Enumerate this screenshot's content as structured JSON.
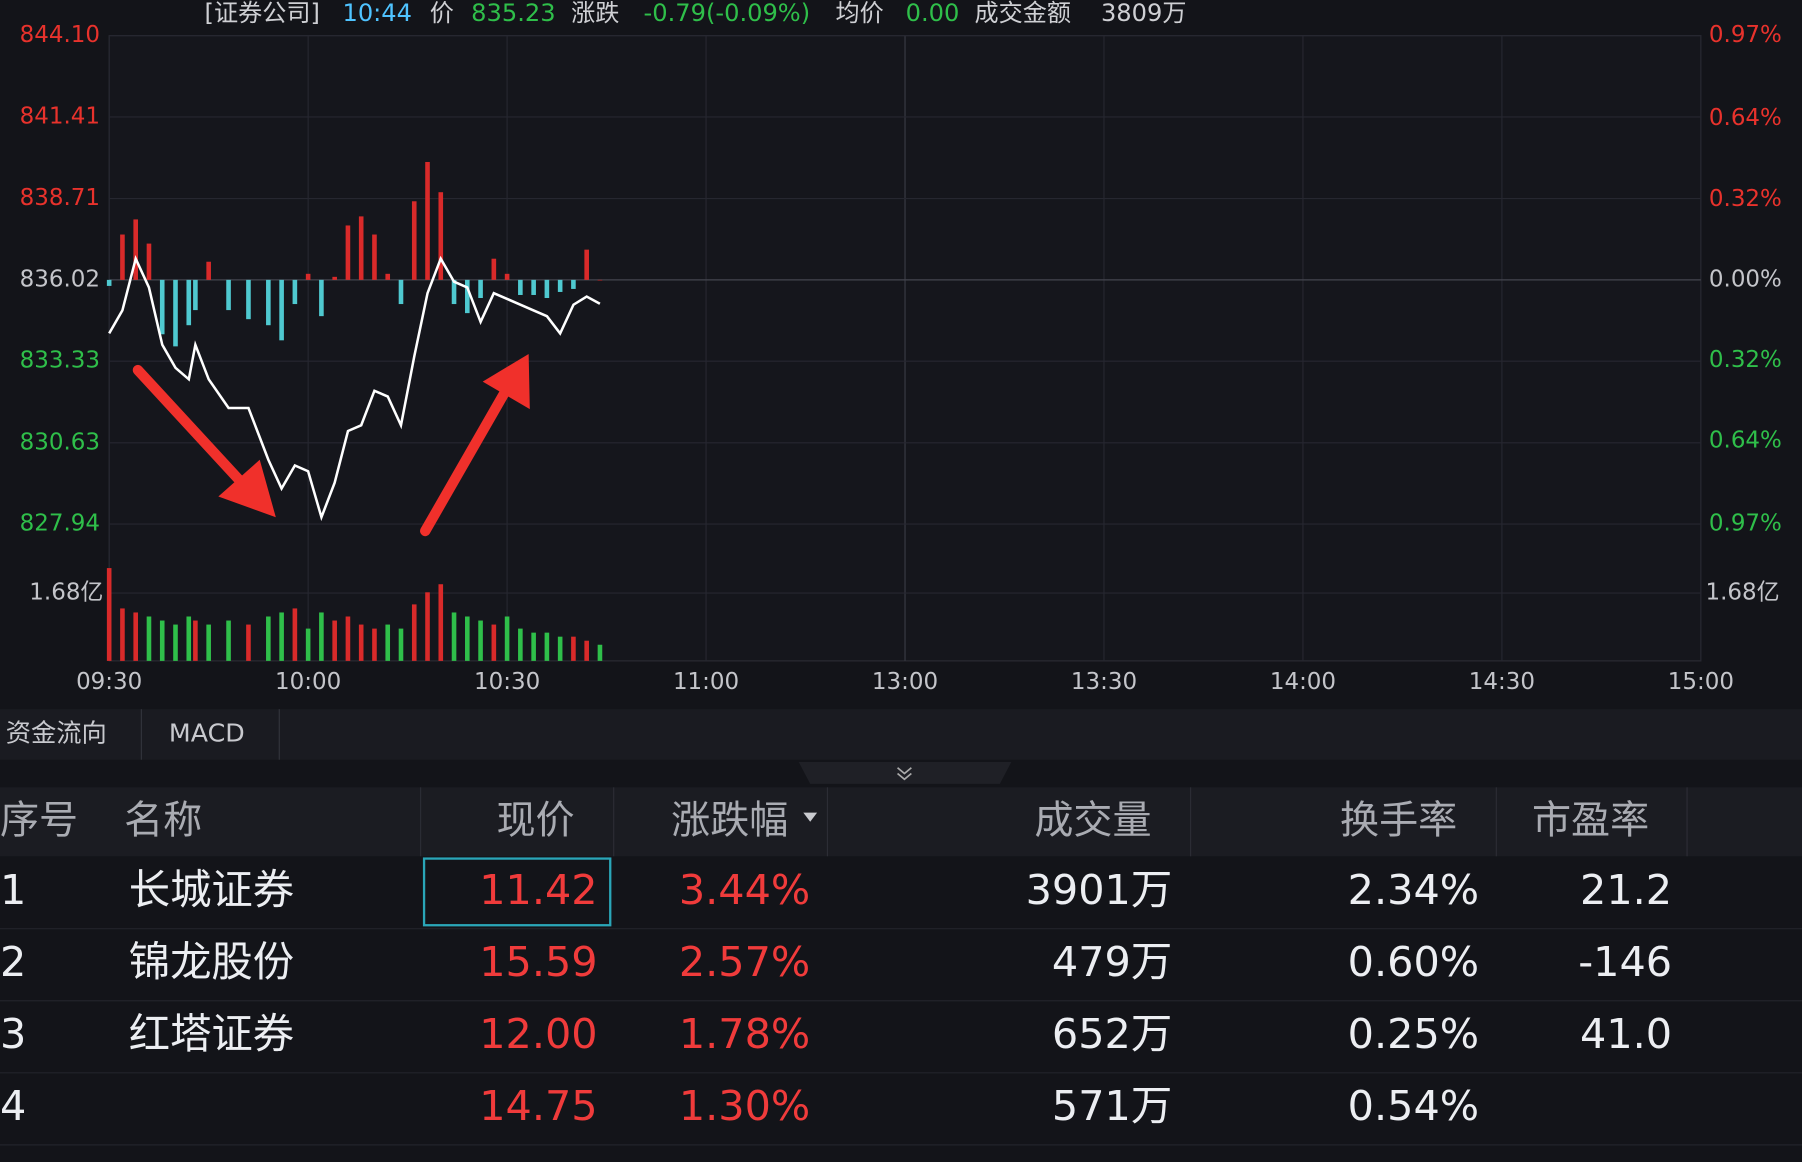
{
  "header": {
    "sector": "[证券公司]",
    "time": "10:44",
    "price_label": "价",
    "price": "835.23",
    "change_label": "涨跌",
    "change": "-0.79(-0.09%)",
    "avg_label": "均价",
    "avg": "0.00",
    "amount_label": "成交金额",
    "amount": "3809万"
  },
  "chart_data": {
    "type": "line",
    "x": [
      0,
      2,
      4,
      6,
      8,
      10,
      12,
      13,
      15,
      18,
      21,
      24,
      26,
      28,
      30,
      32,
      34,
      36,
      38,
      40,
      42,
      44,
      46,
      48,
      50,
      52,
      54,
      56,
      58,
      60,
      62,
      64,
      66,
      68,
      70,
      72,
      74
    ],
    "values": [
      834.25,
      835.01,
      836.72,
      835.77,
      833.87,
      833.11,
      832.73,
      833.87,
      832.73,
      831.78,
      831.78,
      830.07,
      829.12,
      829.88,
      829.69,
      828.17,
      829.31,
      831.02,
      831.21,
      832.35,
      832.16,
      831.21,
      833.49,
      835.58,
      836.72,
      835.96,
      835.77,
      834.63,
      835.58,
      835.39,
      835.2,
      835.01,
      834.82,
      834.25,
      835.2,
      835.47,
      835.23
    ],
    "flow": [
      -0.2,
      1.5,
      2.0,
      1.2,
      -1.8,
      -2.2,
      -1.5,
      -1.0,
      0.6,
      -1.0,
      -1.3,
      -1.5,
      -2.0,
      -0.8,
      0.2,
      -1.2,
      0.1,
      1.8,
      2.1,
      1.5,
      0.2,
      -0.8,
      2.6,
      3.9,
      2.9,
      -0.8,
      -1.1,
      -0.6,
      0.7,
      0.2,
      -0.5,
      -0.5,
      -0.6,
      -0.4,
      -0.3,
      1.0,
      0.0
    ],
    "volume": [
      2.3,
      1.3,
      1.2,
      1.1,
      1.0,
      0.9,
      1.1,
      1.0,
      0.9,
      1.0,
      0.9,
      1.1,
      1.2,
      1.3,
      0.8,
      1.2,
      1.0,
      1.1,
      0.9,
      0.8,
      0.9,
      0.8,
      1.4,
      1.7,
      1.9,
      1.2,
      1.1,
      1.0,
      0.9,
      1.1,
      0.8,
      0.7,
      0.7,
      0.6,
      0.6,
      0.5,
      0.4
    ],
    "color": "#ffffff",
    "xlim": [
      0,
      240
    ],
    "xticks": [
      {
        "value": 0,
        "label": "09:30"
      },
      {
        "value": 30,
        "label": "10:00"
      },
      {
        "value": 60,
        "label": "10:30"
      },
      {
        "value": 90,
        "label": "11:00"
      },
      {
        "value": 120,
        "label": "13:00"
      },
      {
        "value": 150,
        "label": "13:30"
      },
      {
        "value": 180,
        "label": "14:00"
      },
      {
        "value": 210,
        "label": "14:30"
      },
      {
        "value": 240,
        "label": "15:00"
      }
    ],
    "ylim": [
      827.94,
      844.1
    ],
    "yticks": [
      {
        "value": 844.1,
        "label": "844.10"
      },
      841.41,
      838.71,
      836.02,
      833.33,
      830.63,
      827.94
    ],
    "y2lim": [
      -0.97,
      0.97
    ],
    "y2ticks": [
      {
        "value": 0.97,
        "label": "0.97%"
      },
      {
        "value": 0.64,
        "label": "0.64%"
      },
      {
        "value": 0.32,
        "label": "0.32%"
      },
      {
        "value": 0,
        "label": "0.00%"
      },
      {
        "value": -0.32,
        "label": "0.32%"
      },
      {
        "value": -0.64,
        "label": "0.64%"
      },
      {
        "value": -0.97,
        "label": "0.97%"
      }
    ],
    "vlim": [
      0,
      3.39
    ],
    "vticks": [
      {
        "value": 1.68,
        "label": "1.68亿"
      }
    ],
    "grid": true
  },
  "tabs": [
    "资金流向",
    "MACD"
  ],
  "table": {
    "columns": [
      "序号",
      "名称",
      "现价",
      "涨跌幅",
      "成交量",
      "换手率",
      "市盈率"
    ],
    "rows": [
      [
        "1",
        "长城证券",
        "11.42",
        "3.44%",
        "3901万",
        "2.34%",
        "21.2"
      ],
      [
        "2",
        "锦龙股份",
        "15.59",
        "2.57%",
        "479万",
        "0.60%",
        "-146"
      ],
      [
        "3",
        "红塔证券",
        "12.00",
        "1.78%",
        "652万",
        "0.25%",
        "41.0"
      ],
      [
        "4",
        null,
        "14.75",
        "1.30%",
        "571万",
        "0.54%",
        null
      ]
    ]
  }
}
